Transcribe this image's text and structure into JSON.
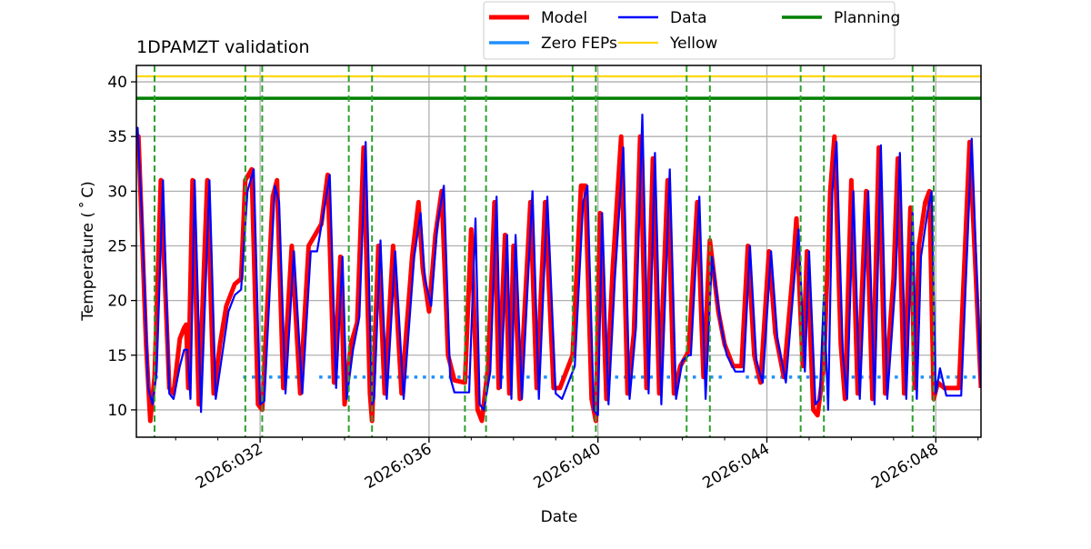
{
  "chart_data": {
    "type": "line",
    "title": "1DPAMZT validation",
    "xlabel": "Date",
    "ylabel": "Temperature ($^\\circ$C)",
    "ylabel_display": "Temperature ( ˚ C)",
    "xlim": [
      29.07,
      49.07
    ],
    "ylim": [
      7.5,
      41.5
    ],
    "x_ticks": [
      {
        "value": 32,
        "label": "2026:032"
      },
      {
        "value": 36,
        "label": "2026:036"
      },
      {
        "value": 40,
        "label": "2026:040"
      },
      {
        "value": 44,
        "label": "2026:044"
      },
      {
        "value": 48,
        "label": "2026:048"
      }
    ],
    "x_minor_ticks": [
      29,
      30,
      31,
      33,
      34,
      35,
      37,
      38,
      39,
      41,
      42,
      43,
      45,
      46,
      47,
      49
    ],
    "y_ticks": [
      10,
      15,
      20,
      25,
      30,
      35,
      40
    ],
    "grid": true,
    "legend": {
      "position": "top-center-outside",
      "entries": [
        {
          "name": "Model",
          "color": "#ff0000"
        },
        {
          "name": "Data",
          "color": "#0000ff"
        },
        {
          "name": "Planning",
          "color": "#008000"
        },
        {
          "name": "Zero FEPs",
          "color": "#1e90ff"
        },
        {
          "name": "Yellow",
          "color": "#ffd700"
        }
      ]
    },
    "limits": {
      "planning": 38.5,
      "yellow": 40.5
    },
    "zero_feps": {
      "level": 13,
      "segments": [
        [
          29.3,
          29.65
        ],
        [
          31.6,
          33.0
        ],
        [
          33.4,
          39.5
        ],
        [
          40.2,
          43.0
        ],
        [
          43.5,
          45.3
        ],
        [
          45.8,
          49.07
        ]
      ]
    },
    "vlines": [
      29.5,
      31.65,
      32.05,
      34.1,
      34.65,
      36.85,
      37.35,
      39.4,
      39.95,
      42.1,
      42.65,
      44.8,
      45.35,
      47.45,
      47.95
    ],
    "series": [
      {
        "name": "Model",
        "color": "#ff0000",
        "points": [
          [
            29.07,
            34.0
          ],
          [
            29.12,
            35.0
          ],
          [
            29.3,
            16.0
          ],
          [
            29.4,
            9.0
          ],
          [
            29.5,
            13.0
          ],
          [
            29.65,
            31.0
          ],
          [
            29.85,
            12.0
          ],
          [
            29.95,
            11.5
          ],
          [
            30.1,
            16.5
          ],
          [
            30.2,
            17.5
          ],
          [
            30.25,
            17.8
          ],
          [
            30.3,
            12.0
          ],
          [
            30.4,
            31.0
          ],
          [
            30.55,
            10.5
          ],
          [
            30.75,
            31.0
          ],
          [
            30.9,
            11.5
          ],
          [
            31.05,
            16.0
          ],
          [
            31.2,
            19.5
          ],
          [
            31.4,
            21.5
          ],
          [
            31.55,
            22.0
          ],
          [
            31.65,
            31.0
          ],
          [
            31.8,
            32.0
          ],
          [
            31.95,
            10.5
          ],
          [
            32.05,
            10.0
          ],
          [
            32.3,
            29.5
          ],
          [
            32.4,
            31.0
          ],
          [
            32.55,
            12.0
          ],
          [
            32.75,
            25.0
          ],
          [
            32.95,
            11.5
          ],
          [
            33.15,
            25.0
          ],
          [
            33.3,
            26.0
          ],
          [
            33.45,
            27.0
          ],
          [
            33.6,
            31.5
          ],
          [
            33.75,
            12.5
          ],
          [
            33.9,
            24.0
          ],
          [
            34.0,
            10.5
          ],
          [
            34.15,
            16.0
          ],
          [
            34.3,
            18.0
          ],
          [
            34.45,
            34.0
          ],
          [
            34.6,
            11.5
          ],
          [
            34.65,
            9.0
          ],
          [
            34.8,
            25.0
          ],
          [
            34.95,
            11.5
          ],
          [
            35.15,
            25.0
          ],
          [
            35.35,
            11.5
          ],
          [
            35.6,
            24.0
          ],
          [
            35.75,
            29.0
          ],
          [
            35.85,
            23.0
          ],
          [
            36.0,
            19.0
          ],
          [
            36.15,
            26.0
          ],
          [
            36.3,
            30.0
          ],
          [
            36.45,
            15.0
          ],
          [
            36.6,
            12.7
          ],
          [
            36.85,
            12.5
          ],
          [
            37.0,
            26.5
          ],
          [
            37.15,
            10.0
          ],
          [
            37.25,
            9.0
          ],
          [
            37.4,
            14.0
          ],
          [
            37.55,
            29.0
          ],
          [
            37.65,
            12.0
          ],
          [
            37.8,
            26.0
          ],
          [
            37.9,
            11.5
          ],
          [
            38.0,
            25.0
          ],
          [
            38.15,
            11.0
          ],
          [
            38.4,
            29.0
          ],
          [
            38.55,
            12.0
          ],
          [
            38.75,
            29.0
          ],
          [
            38.95,
            12.0
          ],
          [
            39.1,
            12.0
          ],
          [
            39.4,
            15.0
          ],
          [
            39.6,
            30.5
          ],
          [
            39.7,
            30.5
          ],
          [
            39.85,
            11.0
          ],
          [
            39.95,
            9.0
          ],
          [
            40.05,
            28.0
          ],
          [
            40.2,
            11.0
          ],
          [
            40.35,
            23.0
          ],
          [
            40.55,
            35.0
          ],
          [
            40.7,
            11.5
          ],
          [
            40.85,
            17.0
          ],
          [
            41.0,
            35.0
          ],
          [
            41.15,
            12.0
          ],
          [
            41.3,
            33.0
          ],
          [
            41.45,
            11.5
          ],
          [
            41.65,
            31.0
          ],
          [
            41.8,
            11.5
          ],
          [
            41.95,
            14.0
          ],
          [
            42.1,
            15.0
          ],
          [
            42.15,
            15.5
          ],
          [
            42.35,
            29.0
          ],
          [
            42.5,
            13.0
          ],
          [
            42.65,
            25.5
          ],
          [
            42.85,
            19.0
          ],
          [
            43.0,
            16.0
          ],
          [
            43.2,
            14.0
          ],
          [
            43.4,
            14.0
          ],
          [
            43.55,
            25.0
          ],
          [
            43.7,
            15.0
          ],
          [
            43.85,
            12.5
          ],
          [
            44.05,
            24.5
          ],
          [
            44.2,
            17.0
          ],
          [
            44.4,
            13.0
          ],
          [
            44.6,
            22.0
          ],
          [
            44.7,
            27.5
          ],
          [
            44.85,
            14.0
          ],
          [
            44.95,
            24.5
          ],
          [
            45.1,
            10.0
          ],
          [
            45.2,
            9.5
          ],
          [
            45.35,
            14.0
          ],
          [
            45.5,
            30.0
          ],
          [
            45.6,
            35.0
          ],
          [
            45.75,
            16.0
          ],
          [
            45.85,
            11.0
          ],
          [
            46.0,
            31.0
          ],
          [
            46.15,
            11.5
          ],
          [
            46.35,
            30.0
          ],
          [
            46.5,
            11.0
          ],
          [
            46.65,
            34.0
          ],
          [
            46.8,
            11.5
          ],
          [
            47.0,
            22.0
          ],
          [
            47.1,
            33.0
          ],
          [
            47.25,
            11.5
          ],
          [
            47.4,
            28.5
          ],
          [
            47.5,
            12.0
          ],
          [
            47.6,
            25.0
          ],
          [
            47.75,
            29.0
          ],
          [
            47.85,
            30.0
          ],
          [
            47.95,
            11.0
          ],
          [
            48.05,
            12.5
          ],
          [
            48.2,
            12.0
          ],
          [
            48.55,
            12.0
          ],
          [
            48.8,
            34.5
          ],
          [
            49.07,
            12.0
          ]
        ]
      },
      {
        "name": "Data",
        "color": "#0000ff",
        "points": [
          [
            29.07,
            35.0
          ],
          [
            29.1,
            35.8
          ],
          [
            29.2,
            28.0
          ],
          [
            29.35,
            12.0
          ],
          [
            29.45,
            10.5
          ],
          [
            29.55,
            13.5
          ],
          [
            29.7,
            31.0
          ],
          [
            29.85,
            11.5
          ],
          [
            29.95,
            11.0
          ],
          [
            30.1,
            14.0
          ],
          [
            30.2,
            15.5
          ],
          [
            30.28,
            15.5
          ],
          [
            30.35,
            11.0
          ],
          [
            30.45,
            31.0
          ],
          [
            30.6,
            9.8
          ],
          [
            30.8,
            31.0
          ],
          [
            30.95,
            11.0
          ],
          [
            31.1,
            15.0
          ],
          [
            31.25,
            19.0
          ],
          [
            31.4,
            20.5
          ],
          [
            31.55,
            21.0
          ],
          [
            31.7,
            30.0
          ],
          [
            31.85,
            32.0
          ],
          [
            32.0,
            10.5
          ],
          [
            32.1,
            10.8
          ],
          [
            32.35,
            30.5
          ],
          [
            32.45,
            29.0
          ],
          [
            32.6,
            11.5
          ],
          [
            32.8,
            24.5
          ],
          [
            33.0,
            11.5
          ],
          [
            33.2,
            24.5
          ],
          [
            33.35,
            24.5
          ],
          [
            33.5,
            28.0
          ],
          [
            33.65,
            31.5
          ],
          [
            33.8,
            12.0
          ],
          [
            33.95,
            24.0
          ],
          [
            34.05,
            11.0
          ],
          [
            34.2,
            15.5
          ],
          [
            34.35,
            18.5
          ],
          [
            34.5,
            34.5
          ],
          [
            34.65,
            10.5
          ],
          [
            34.7,
            11.0
          ],
          [
            34.85,
            25.5
          ],
          [
            35.0,
            11.0
          ],
          [
            35.2,
            24.5
          ],
          [
            35.4,
            11.0
          ],
          [
            35.65,
            24.0
          ],
          [
            35.8,
            28.0
          ],
          [
            35.9,
            22.0
          ],
          [
            36.05,
            19.5
          ],
          [
            36.2,
            27.0
          ],
          [
            36.35,
            30.5
          ],
          [
            36.5,
            13.0
          ],
          [
            36.6,
            11.6
          ],
          [
            36.95,
            11.6
          ],
          [
            37.1,
            27.5
          ],
          [
            37.2,
            10.5
          ],
          [
            37.3,
            10.0
          ],
          [
            37.45,
            13.5
          ],
          [
            37.6,
            29.5
          ],
          [
            37.7,
            12.0
          ],
          [
            37.85,
            26.0
          ],
          [
            37.95,
            11.0
          ],
          [
            38.05,
            26.0
          ],
          [
            38.2,
            11.0
          ],
          [
            38.45,
            30.0
          ],
          [
            38.6,
            11.0
          ],
          [
            38.8,
            29.5
          ],
          [
            39.0,
            11.5
          ],
          [
            39.15,
            11.0
          ],
          [
            39.45,
            14.0
          ],
          [
            39.65,
            29.0
          ],
          [
            39.75,
            30.5
          ],
          [
            39.9,
            10.0
          ],
          [
            40.0,
            9.5
          ],
          [
            40.1,
            28.0
          ],
          [
            40.25,
            10.5
          ],
          [
            40.4,
            22.0
          ],
          [
            40.6,
            34.0
          ],
          [
            40.75,
            11.0
          ],
          [
            40.9,
            17.5
          ],
          [
            41.05,
            37.0
          ],
          [
            41.2,
            11.5
          ],
          [
            41.35,
            33.5
          ],
          [
            41.5,
            10.5
          ],
          [
            41.7,
            32.0
          ],
          [
            41.85,
            11.0
          ],
          [
            42.0,
            14.5
          ],
          [
            42.15,
            15.0
          ],
          [
            42.2,
            15.0
          ],
          [
            42.4,
            29.5
          ],
          [
            42.55,
            11.0
          ],
          [
            42.7,
            24.0
          ],
          [
            42.9,
            18.0
          ],
          [
            43.05,
            15.0
          ],
          [
            43.25,
            13.5
          ],
          [
            43.45,
            13.5
          ],
          [
            43.6,
            25.0
          ],
          [
            43.75,
            14.5
          ],
          [
            43.9,
            12.5
          ],
          [
            44.1,
            24.5
          ],
          [
            44.25,
            16.5
          ],
          [
            44.45,
            12.5
          ],
          [
            44.65,
            22.0
          ],
          [
            44.75,
            26.5
          ],
          [
            44.9,
            13.5
          ],
          [
            45.0,
            24.5
          ],
          [
            45.15,
            10.5
          ],
          [
            45.25,
            11.0
          ],
          [
            45.35,
            20.5
          ],
          [
            45.45,
            10.0
          ],
          [
            45.55,
            30.0
          ],
          [
            45.65,
            34.5
          ],
          [
            45.8,
            15.0
          ],
          [
            45.9,
            11.0
          ],
          [
            46.05,
            30.0
          ],
          [
            46.2,
            11.0
          ],
          [
            46.4,
            30.0
          ],
          [
            46.55,
            10.5
          ],
          [
            46.7,
            34.2
          ],
          [
            46.85,
            11.0
          ],
          [
            47.05,
            22.0
          ],
          [
            47.15,
            33.5
          ],
          [
            47.3,
            11.0
          ],
          [
            47.45,
            28.0
          ],
          [
            47.55,
            11.0
          ],
          [
            47.65,
            24.0
          ],
          [
            47.8,
            28.0
          ],
          [
            47.9,
            30.0
          ],
          [
            48.0,
            11.5
          ],
          [
            48.1,
            13.8
          ],
          [
            48.25,
            11.3
          ],
          [
            48.6,
            11.3
          ],
          [
            48.85,
            34.8
          ],
          [
            49.07,
            12.0
          ]
        ]
      }
    ]
  }
}
